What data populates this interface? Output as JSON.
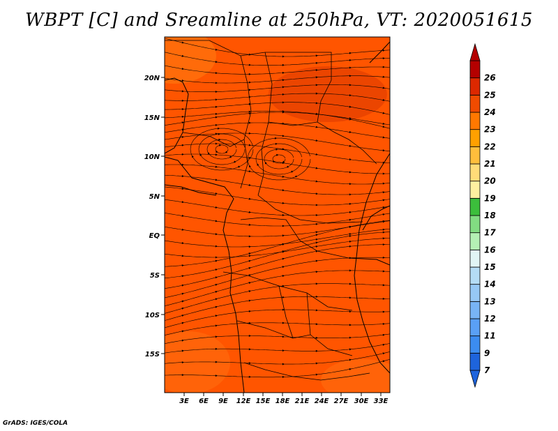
{
  "title": "WBPT [C] and Sreamline at 250hPa, VT: 2020051615",
  "credit": "GrADS: IGES/COLA",
  "lat_labels": [
    "20N",
    "15N",
    "10N",
    "5N",
    "EQ",
    "5S",
    "10S",
    "15S"
  ],
  "lon_labels": [
    "3E",
    "6E",
    "9E",
    "12E",
    "15E",
    "18E",
    "21E",
    "24E",
    "27E",
    "30E",
    "33E"
  ],
  "colorbar": {
    "labels": [
      "7",
      "9",
      "11",
      "12",
      "13",
      "14",
      "15",
      "16",
      "17",
      "18",
      "19",
      "20",
      "21",
      "22",
      "23",
      "24",
      "25",
      "26"
    ],
    "colors": [
      "#1e64dc",
      "#3c8cf0",
      "#5aa0f5",
      "#78b4f5",
      "#96c8f5",
      "#b4dcf5",
      "#e1f5f5",
      "#b4f0b4",
      "#82dc82",
      "#3cbe3c",
      "#fff0a0",
      "#ffdc78",
      "#ffbe3c",
      "#ffa000",
      "#ff7800",
      "#f04b00",
      "#dc2800",
      "#b40000"
    ]
  },
  "map": {
    "dominant_field_color": "#ff5500",
    "high_color": "#d93500",
    "low_color": "#ff7010"
  }
}
